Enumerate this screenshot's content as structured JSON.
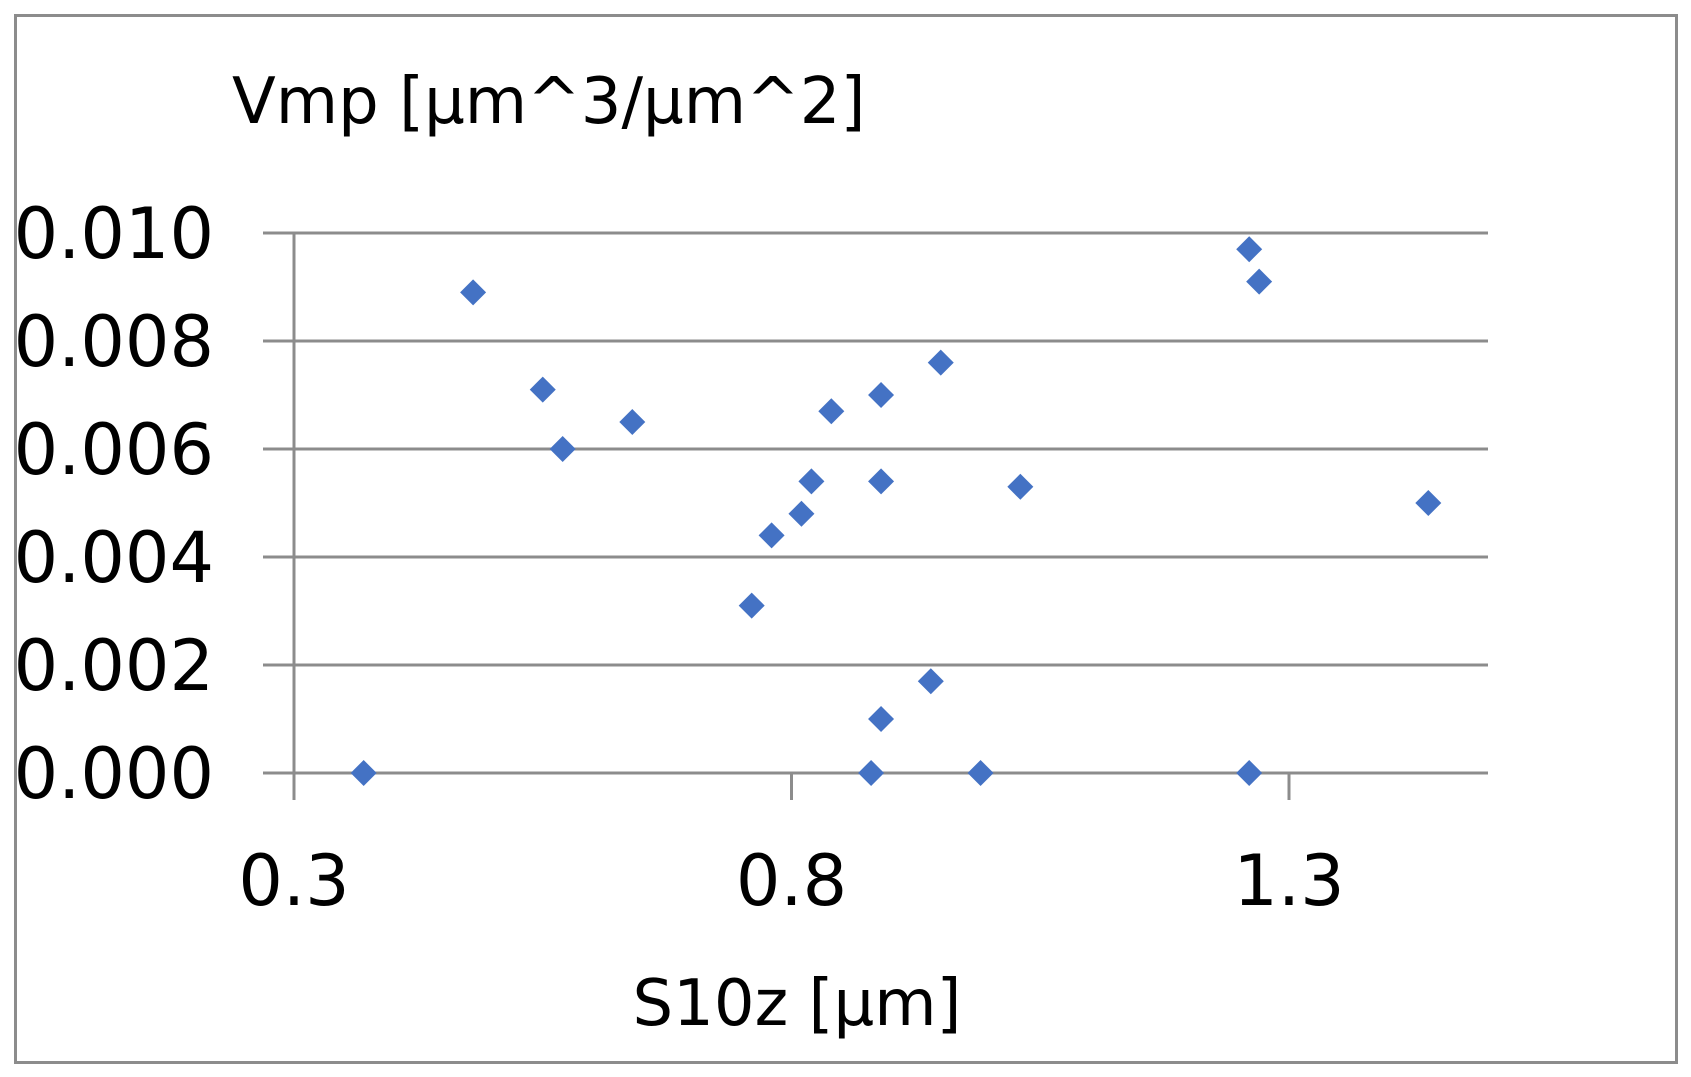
{
  "chart_data": {
    "type": "scatter",
    "title": "",
    "xlabel": "S10z [μm]",
    "ylabel": "Vmp [μm^3/μm^2]",
    "xlim": [
      0.3,
      1.5
    ],
    "ylim": [
      0.0,
      0.01
    ],
    "x_ticks": [
      0.3,
      0.8,
      1.3
    ],
    "x_tick_labels": [
      "0.3",
      "0.8",
      "1.3"
    ],
    "y_ticks": [
      0.0,
      0.002,
      0.004,
      0.006,
      0.008,
      0.01
    ],
    "y_tick_labels": [
      "0.000",
      "0.002",
      "0.004",
      "0.006",
      "0.008",
      "0.010"
    ],
    "grid": "horizontal",
    "legend": "none",
    "marker": "diamond",
    "color": "#4472C4",
    "series": [
      {
        "points": [
          {
            "x": 0.37,
            "y": 0.0
          },
          {
            "x": 0.48,
            "y": 0.0089
          },
          {
            "x": 0.55,
            "y": 0.0071
          },
          {
            "x": 0.57,
            "y": 0.006
          },
          {
            "x": 0.64,
            "y": 0.0065
          },
          {
            "x": 0.76,
            "y": 0.0031
          },
          {
            "x": 0.78,
            "y": 0.0044
          },
          {
            "x": 0.81,
            "y": 0.0048
          },
          {
            "x": 0.82,
            "y": 0.0054
          },
          {
            "x": 0.84,
            "y": 0.0067
          },
          {
            "x": 0.88,
            "y": 0.0
          },
          {
            "x": 0.89,
            "y": 0.0054
          },
          {
            "x": 0.89,
            "y": 0.007
          },
          {
            "x": 0.89,
            "y": 0.001
          },
          {
            "x": 0.94,
            "y": 0.0017
          },
          {
            "x": 0.95,
            "y": 0.0076
          },
          {
            "x": 0.99,
            "y": 0.0
          },
          {
            "x": 1.03,
            "y": 0.0053
          },
          {
            "x": 1.26,
            "y": 0.0097
          },
          {
            "x": 1.27,
            "y": 0.0091
          },
          {
            "x": 1.26,
            "y": 0.0
          },
          {
            "x": 1.44,
            "y": 0.005
          }
        ]
      }
    ]
  }
}
